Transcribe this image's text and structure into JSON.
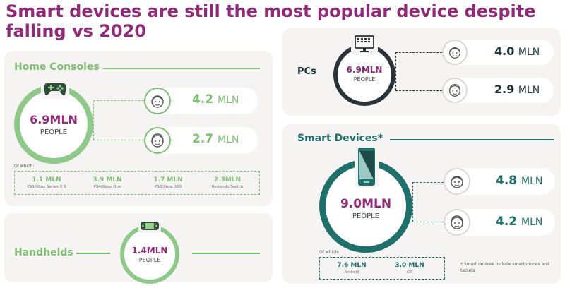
{
  "title": "Smart devices are still the most popular device despite falling vs 2020",
  "colors": {
    "title": "#8e2a78",
    "green": "#7fbf73",
    "teal": "#1f6f6a",
    "dark": "#24343b"
  },
  "consoles": {
    "label": "Home Consoles",
    "icon": "gamepad-icon",
    "total_value": "6.9MLN",
    "total_unit": "PEOPLE",
    "male": {
      "value": "4.2",
      "unit": "MLN"
    },
    "female": {
      "value": "2.7",
      "unit": "MLN"
    },
    "of_which": "Of which:",
    "breakdown": [
      {
        "value": "1.1 MLN",
        "label": "PS5/Xbox Series X S"
      },
      {
        "value": "3.9 MLN",
        "label": "PS4/Xbox One"
      },
      {
        "value": "1.7 MLN",
        "label": "PS3/Xbox 360"
      },
      {
        "value": "2.3MLN",
        "label": "Nintendo Switch"
      }
    ]
  },
  "handhelds": {
    "label": "Handhelds",
    "icon": "handheld-console-icon",
    "total_value": "1.4MLN",
    "total_unit": "PEOPLE"
  },
  "pcs": {
    "label": "PCs",
    "icon": "monitor-icon",
    "total_value": "6.9MLN",
    "total_unit": "PEOPLE",
    "male": {
      "value": "4.0",
      "unit": "MLN"
    },
    "female": {
      "value": "2.9",
      "unit": "MLN"
    }
  },
  "smart": {
    "label": "Smart Devices*",
    "icon": "smartphone-icon",
    "total_value": "9.0MLN",
    "total_unit": "PEOPLE",
    "male": {
      "value": "4.8",
      "unit": "MLN"
    },
    "female": {
      "value": "4.2",
      "unit": "MLN"
    },
    "of_which": "Of which:",
    "breakdown": [
      {
        "value": "7.6 MLN",
        "label": "Android"
      },
      {
        "value": "3.0 MLN",
        "label": "iOS"
      }
    ],
    "footnote": "* Smart devices include smartphones and tablets"
  }
}
